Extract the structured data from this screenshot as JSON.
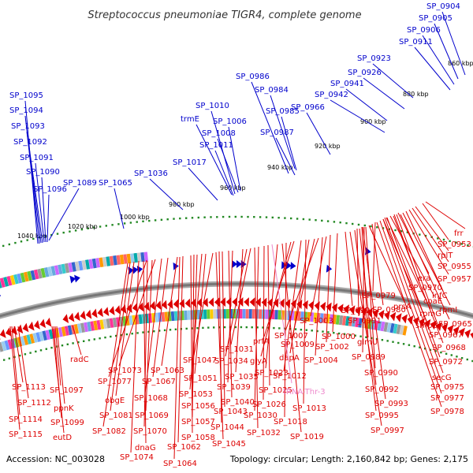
{
  "title": "Streptococcus pneumoniae TIGR4, complete genome",
  "footer": {
    "accession": "Accession: NC_003028",
    "summary": "Topology: circular; Length: 2,160,842 bp; Genes: 2,175"
  },
  "colors": {
    "forward_gene": "#0000cc",
    "reverse_gene": "#dd0000",
    "rna": "#ee88cc",
    "backbone": "#777777",
    "tick": "#228822"
  },
  "kbp_marks": [
    "860 kbp",
    "880 kbp",
    "900 kbp",
    "920 kbp",
    "940 kbp",
    "960 kbp",
    "980 kbp",
    "1000 kbp",
    "1020 kbp",
    "1040 kbp"
  ],
  "forward_labels": [
    "SP_0904",
    "SP_0905",
    "SP_0906",
    "SP_0911",
    "SP_0923",
    "SP_0926",
    "SP_0941",
    "SP_0942",
    "SP_0966",
    "SP_0984",
    "SP_0985",
    "SP_0986",
    "SP_0987",
    "SP_1006",
    "SP_1008",
    "SP_1010",
    "trmE",
    "SP_1011",
    "SP_1017",
    "SP_1036",
    "SP_1065",
    "SP_1089",
    "SP_1090",
    "SP_1091",
    "SP_1092",
    "SP_1093",
    "SP_1094",
    "SP_1095",
    "SP_1096"
  ],
  "reverse_labels": [
    "frr",
    "SP_0953",
    "rplT",
    "SP_0955",
    "SP_0957",
    "infC",
    "era",
    "SP_0970",
    "rpmI",
    "coaE",
    "SP_0965",
    "rpmG",
    "smpB",
    "SP_0967",
    "SP_0968",
    "SP_0972",
    "SP_0979",
    "SP_0980",
    "prsA",
    "SP_0994",
    "SP_0991",
    "glmU",
    "SP_1003",
    "SP_1000",
    "SP_1002",
    "SP_0989",
    "SP_0990",
    "SP_1007",
    "SP_1009",
    "SP_1004",
    "dapA",
    "prfA",
    "SP_1012",
    "glyA",
    "SP_1031",
    "SP_1023",
    "SP_1034",
    "SP_1035",
    "SP_1025",
    "SP_1039",
    "SP_1047",
    "SP_1051",
    "SP_1040",
    "SP_1026",
    "SP_1053",
    "SP_1043",
    "SP_1063",
    "SP_1067",
    "SP_1073",
    "SP_1077",
    "SP_1068",
    "SP_1056",
    "SP_1057",
    "SP_1069",
    "SP_1044",
    "SP_1030",
    "SP_1058",
    "SP_1070",
    "SP_1062",
    "SP_1045",
    "SP_1032",
    "SP_1018",
    "SP_1013",
    "SP_1019",
    "radC",
    "SP_1081",
    "obgE",
    "SP_1082",
    "dnaG",
    "SP_1074",
    "SP_1064",
    "SP_1113",
    "SP_1097",
    "SP_1112",
    "ppnK",
    "SP_1114",
    "SP_1099",
    "eutD",
    "SP_1115",
    "secG",
    "SP_0975",
    "SP_0977",
    "SP_0978",
    "SP_0992",
    "SP_0993",
    "SP_0995",
    "SP_0997"
  ],
  "rna_labels": [
    "tRNA-Thr-3"
  ]
}
